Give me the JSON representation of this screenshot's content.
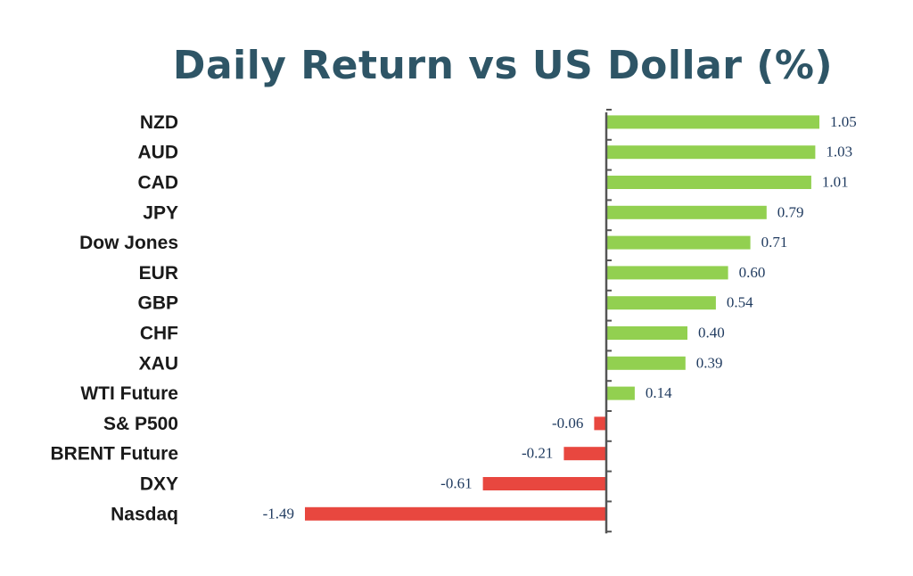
{
  "chart_data": {
    "type": "bar",
    "orientation": "horizontal",
    "title": "Daily Return vs US Dollar (%)",
    "categories": [
      "NZD",
      "AUD",
      "CAD",
      "JPY",
      "Dow Jones",
      "EUR",
      "GBP",
      "CHF",
      "XAU",
      "WTI Future",
      "S& P500",
      "BRENT Future",
      "DXY",
      "Nasdaq"
    ],
    "values": [
      1.05,
      1.03,
      1.01,
      0.79,
      0.71,
      0.6,
      0.54,
      0.4,
      0.39,
      0.14,
      -0.06,
      -0.21,
      -0.61,
      -1.49
    ],
    "value_labels": [
      "1.05",
      "1.03",
      "1.01",
      "0.79",
      "0.71",
      "0.60",
      "0.54",
      "0.40",
      "0.39",
      "0.14",
      "-0.06",
      "-0.21",
      "-0.61",
      "-1.49"
    ],
    "xlabel": "",
    "ylabel": "",
    "xlim": [
      -1.49,
      1.05
    ],
    "grid": false,
    "legend": "none",
    "colors": {
      "positive": "#92d050",
      "negative": "#e8473f",
      "axis": "#555555",
      "title": "#2e5566"
    }
  }
}
